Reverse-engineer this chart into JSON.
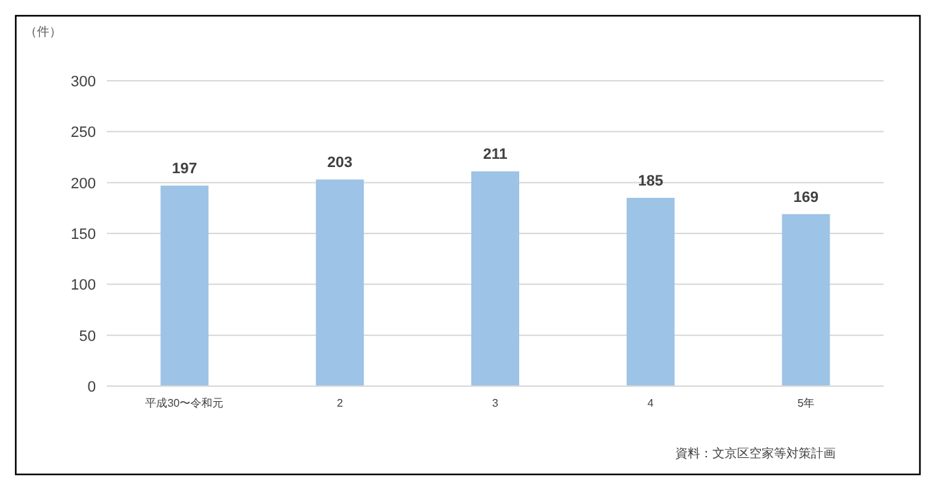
{
  "chart_data": {
    "type": "bar",
    "ylabel": "（件）",
    "categories": [
      "平成30〜令和元",
      "2",
      "3",
      "4",
      "5年"
    ],
    "values": [
      197,
      203,
      211,
      185,
      169
    ],
    "color": "#9dc3e6",
    "ylim": [
      0,
      300
    ],
    "yticks": [
      0,
      50,
      100,
      150,
      200,
      250,
      300
    ],
    "grid": "y",
    "data_labels": true,
    "annotations": [
      "資料：文京区空家等対策計画"
    ]
  }
}
